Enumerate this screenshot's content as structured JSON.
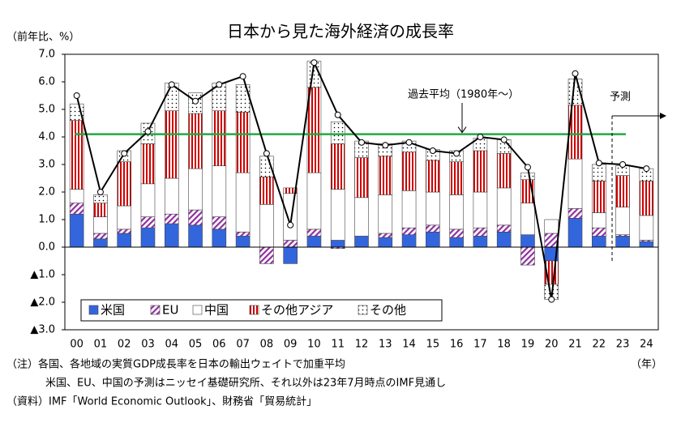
{
  "chart_data": {
    "type": "bar",
    "title": "日本から見た海外経済の成長率",
    "y_label": "（前年比、%）",
    "x_label": "（年）",
    "stacked": true,
    "categories": [
      "00",
      "01",
      "02",
      "03",
      "04",
      "05",
      "06",
      "07",
      "08",
      "09",
      "10",
      "11",
      "12",
      "13",
      "14",
      "15",
      "16",
      "17",
      "18",
      "19",
      "20",
      "21",
      "22",
      "23",
      "24"
    ],
    "series": [
      {
        "name": "米国",
        "color": "#3366dd",
        "pattern": "solid",
        "values": [
          1.2,
          0.3,
          0.5,
          0.7,
          0.85,
          0.8,
          0.65,
          0.4,
          0,
          -0.6,
          0.4,
          0.25,
          0.4,
          0.35,
          0.45,
          0.55,
          0.35,
          0.4,
          0.55,
          0.45,
          -0.5,
          1.05,
          0.4,
          0.4,
          0.2
        ]
      },
      {
        "name": "EU",
        "color": "#9030a0",
        "pattern": "hatch",
        "values": [
          0.4,
          0.2,
          0.15,
          0.4,
          0.35,
          0.55,
          0.45,
          0.15,
          -0.6,
          0.25,
          0.25,
          -0.05,
          0,
          0.15,
          0.25,
          0.25,
          0.3,
          0.3,
          0.25,
          -0.65,
          0.5,
          0.35,
          0.3,
          0.05,
          0.05
        ]
      },
      {
        "name": "中国",
        "color": "#ffffff",
        "pattern": "solid",
        "values": [
          0.5,
          0.6,
          0.85,
          1.2,
          1.3,
          1.5,
          1.85,
          2.15,
          1.55,
          1.7,
          2.05,
          1.85,
          1.4,
          1.4,
          1.35,
          1.2,
          1.25,
          1.3,
          1.35,
          1.15,
          0.5,
          1.8,
          0.55,
          1.0,
          0.9
        ]
      },
      {
        "name": "その他アジア",
        "color": "#cc0000",
        "pattern": "stripes",
        "values": [
          2.5,
          0.5,
          1.6,
          1.45,
          2.45,
          2.0,
          2.0,
          2.2,
          1.0,
          0.2,
          3.1,
          1.65,
          1.45,
          1.4,
          1.4,
          1.15,
          1.2,
          1.5,
          1.25,
          0.85,
          -0.85,
          1.95,
          1.15,
          1.15,
          1.25
        ]
      },
      {
        "name": "その他",
        "color": "#000000",
        "pattern": "dots",
        "values": [
          0.6,
          0.3,
          0.4,
          0.75,
          1.0,
          0.75,
          1.0,
          1.0,
          0.75,
          0,
          0.95,
          0.8,
          0.6,
          0.45,
          0.4,
          0.4,
          0.4,
          0.45,
          0.5,
          0.25,
          -0.55,
          0.95,
          0.6,
          0.35,
          0.45
        ]
      }
    ],
    "line": {
      "color": "#000000",
      "values": [
        5.5,
        2.0,
        3.4,
        4.2,
        5.9,
        5.3,
        5.9,
        6.2,
        3.4,
        0.8,
        6.7,
        4.8,
        3.8,
        3.7,
        3.8,
        3.5,
        3.4,
        4.0,
        3.9,
        2.9,
        -1.9,
        6.3,
        3.05,
        3.0,
        2.85
      ]
    },
    "average": {
      "value": 4.1,
      "label": "過去平均（1980年～）",
      "color": "#22aa44"
    },
    "forecast_label": "予測",
    "ylim": [
      -3,
      7
    ],
    "yticks": [
      {
        "value": -3,
        "label": "▲3.0"
      },
      {
        "value": -2,
        "label": "▲2.0"
      },
      {
        "value": -1,
        "label": "▲1.0"
      },
      {
        "value": 0,
        "label": "0.0"
      },
      {
        "value": 1,
        "label": "1.0"
      },
      {
        "value": 2,
        "label": "2.0"
      },
      {
        "value": 3,
        "label": "3.0"
      },
      {
        "value": 4,
        "label": "4.0"
      },
      {
        "value": 5,
        "label": "5.0"
      },
      {
        "value": 6,
        "label": "6.0"
      },
      {
        "value": 7,
        "label": "7.0"
      }
    ],
    "legend": "bottom-left",
    "notes": [
      "（注）各国、各地域の実質GDP成長率を日本の輸出ウェイトで加重平均",
      "米国、EU、中国の予測はニッセイ基礎研究所、それ以外は23年7月時点のIMF見通し",
      "（資料）IMF「World Economic Outlook」、財務省「貿易統計」"
    ]
  }
}
